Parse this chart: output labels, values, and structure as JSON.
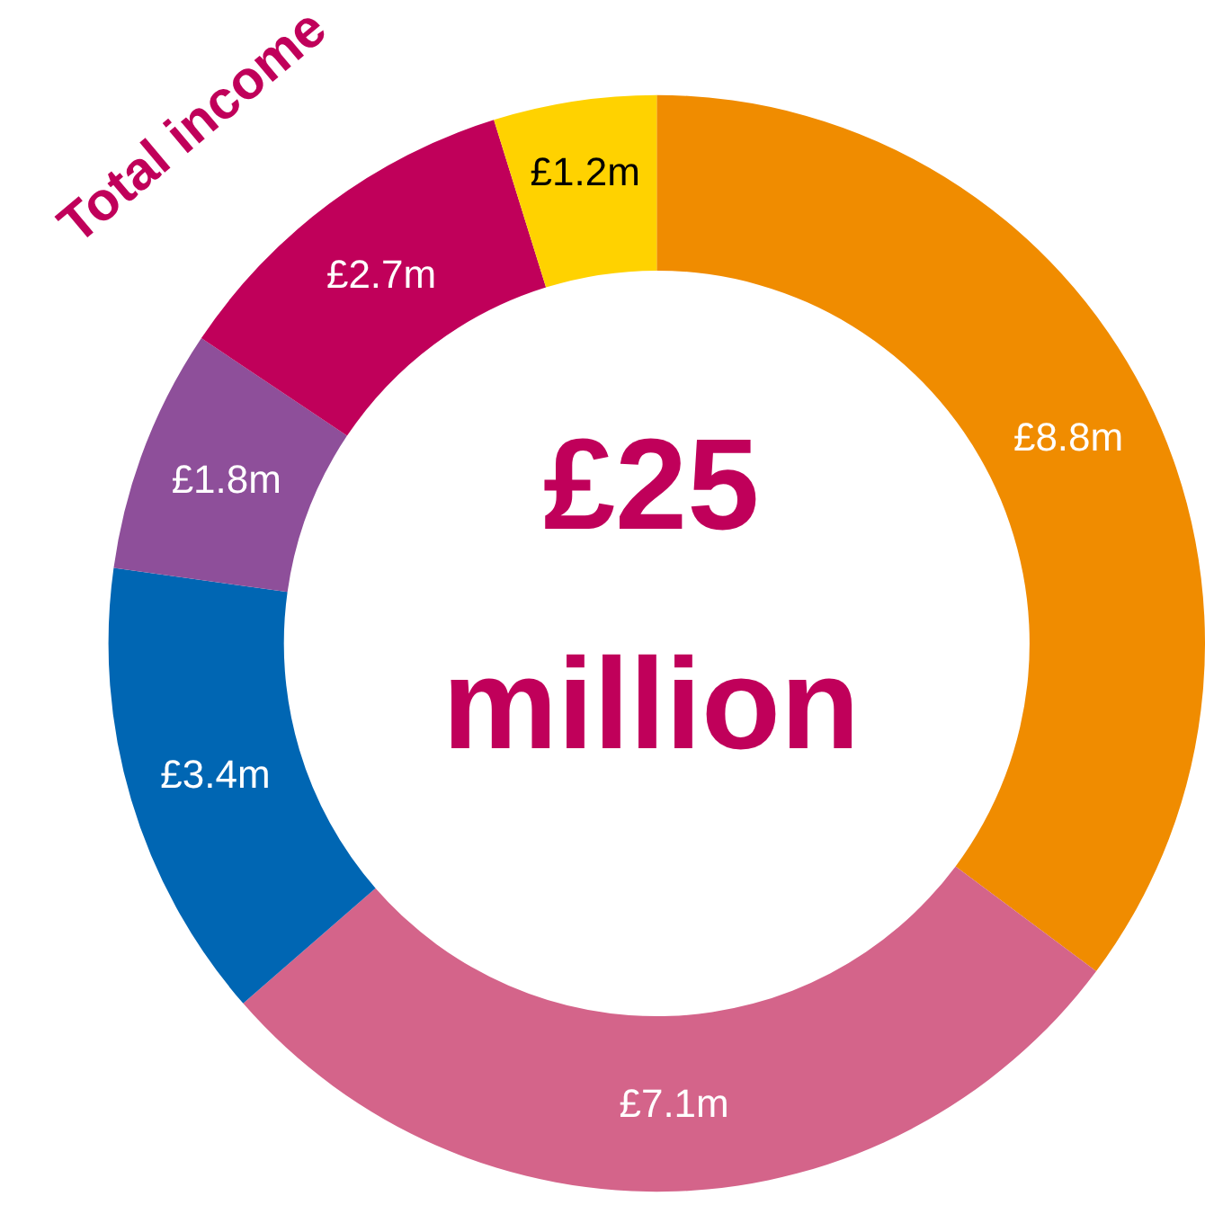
{
  "chart_data": {
    "type": "donut",
    "title": "Total income",
    "categories": [
      null,
      null,
      null,
      null,
      null,
      null
    ],
    "values": [
      8.8,
      7.1,
      3.4,
      1.8,
      2.7,
      1.2
    ],
    "colors": [
      "#f08c00",
      "#d4648a",
      "#0066b3",
      "#8e4f9a",
      "#c0005a",
      "#ffd200"
    ],
    "value_labels": [
      "£8.8m",
      "£7.1m",
      "£3.4m",
      "£1.8m",
      "£2.7m",
      "£1.2m"
    ],
    "annotations": [
      "£25",
      "million"
    ]
  }
}
